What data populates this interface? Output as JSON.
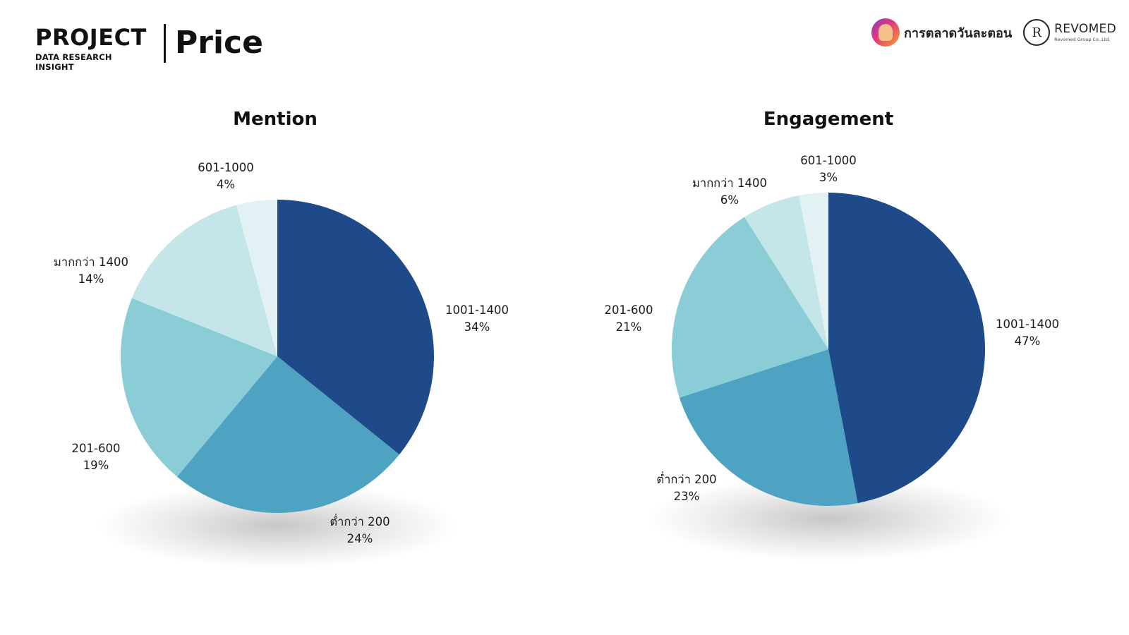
{
  "header": {
    "brand_title": "PROJECT",
    "brand_subtitle": "DATA RESEARCH INSIGHT",
    "page_title": "Price",
    "partner_logo_a": "การตลาดวันละตอน",
    "partner_logo_b": "REVOMED",
    "partner_logo_b_sub": "Revomed Group Co.,Ltd."
  },
  "chart_data": [
    {
      "type": "pie",
      "title": "Mention",
      "labels": [
        "1001-1400",
        "ต่ำกว่า 200",
        "201-600",
        "มากกว่า 1400",
        "601-1000"
      ],
      "values": [
        34,
        24,
        19,
        14,
        4
      ],
      "value_labels": [
        "34%",
        "24%",
        "19%",
        "14%",
        "4%"
      ],
      "colors": [
        "#1f4a8a",
        "#4da3c1",
        "#8acdd6",
        "#c5e6e9",
        "#e2f2f4"
      ]
    },
    {
      "type": "pie",
      "title": "Engagement",
      "labels": [
        "1001-1400",
        "ต่ำกว่า 200",
        "201-600",
        "มากกว่า 1400",
        "601-1000"
      ],
      "values": [
        47,
        23,
        21,
        6,
        3
      ],
      "value_labels": [
        "47%",
        "23%",
        "21%",
        "6%",
        "3%"
      ],
      "colors": [
        "#1f4a8a",
        "#4da3c1",
        "#8acdd6",
        "#c5e6e9",
        "#e2f2f4"
      ]
    }
  ]
}
